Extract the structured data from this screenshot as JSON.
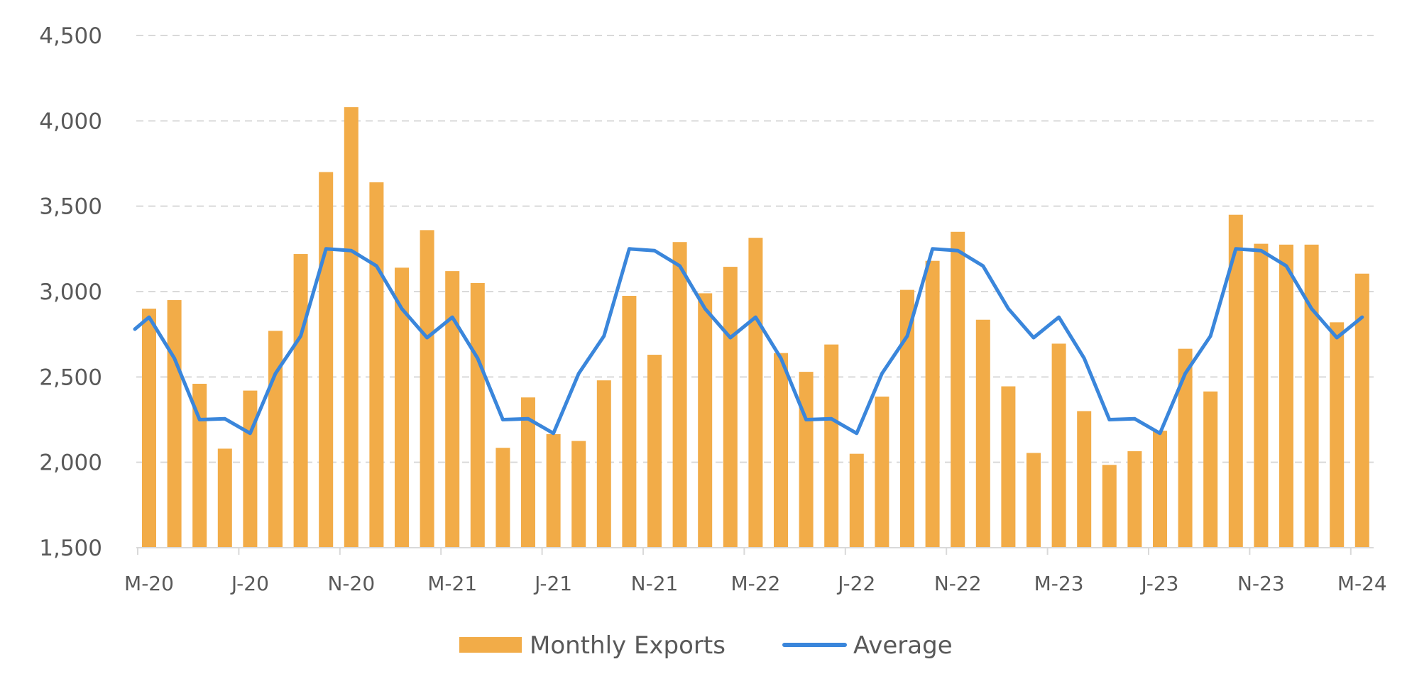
{
  "chart_data": {
    "type": "bar",
    "ylim": [
      1500,
      4500
    ],
    "y_ticks": [
      1500,
      2000,
      2500,
      3000,
      3500,
      4000,
      4500
    ],
    "y_tick_labels": [
      "1,500",
      "2,000",
      "2,500",
      "3,000",
      "3,500",
      "4,000",
      "4,500"
    ],
    "grid": "horizontal-dashed",
    "legend_position": "bottom-center",
    "x_tick_labels": [
      "M-20",
      "J-20",
      "N-20",
      "M-21",
      "J-21",
      "N-21",
      "M-22",
      "J-22",
      "N-22",
      "M-23",
      "J-23",
      "N-23",
      "M-24"
    ],
    "x_tick_every": 4,
    "categories": [
      "2020-03",
      "2020-04",
      "2020-05",
      "2020-06",
      "2020-07",
      "2020-08",
      "2020-09",
      "2020-10",
      "2020-11",
      "2020-12",
      "2021-01",
      "2021-02",
      "2021-03",
      "2021-04",
      "2021-05",
      "2021-06",
      "2021-07",
      "2021-08",
      "2021-09",
      "2021-10",
      "2021-11",
      "2021-12",
      "2022-01",
      "2022-02",
      "2022-03",
      "2022-04",
      "2022-05",
      "2022-06",
      "2022-07",
      "2022-08",
      "2022-09",
      "2022-10",
      "2022-11",
      "2022-12",
      "2023-01",
      "2023-02",
      "2023-03",
      "2023-04",
      "2023-05",
      "2023-06",
      "2023-07",
      "2023-08",
      "2023-09",
      "2023-10",
      "2023-11",
      "2023-12",
      "2024-01",
      "2024-02",
      "2024-03"
    ],
    "series": [
      {
        "name": "Monthly Exports",
        "type": "bar",
        "color": "#F2AC48",
        "values": [
          2900,
          2950,
          2460,
          2080,
          2420,
          2770,
          3220,
          3700,
          4080,
          3640,
          3140,
          3360,
          3120,
          3050,
          2085,
          2380,
          2165,
          2125,
          2480,
          2975,
          2630,
          3290,
          2990,
          3145,
          3315,
          2640,
          2530,
          2690,
          2050,
          2385,
          3010,
          3180,
          3350,
          2835,
          2445,
          2055,
          2695,
          2300,
          1985,
          2065,
          2185,
          2665,
          2415,
          3450,
          3280,
          3275,
          3275,
          2820,
          3105
        ]
      },
      {
        "name": "Average",
        "type": "line",
        "color": "#3A86DB",
        "values": [
          2850,
          2610,
          2250,
          2255,
          2170,
          2520,
          2740,
          3250,
          3240,
          3150,
          2900,
          2730,
          2850,
          2610,
          2250,
          2255,
          2170,
          2520,
          2740,
          3250,
          3240,
          3150,
          2900,
          2730,
          2850,
          2610,
          2250,
          2255,
          2170,
          2520,
          2740,
          3250,
          3240,
          3150,
          2900,
          2730,
          2850,
          2610,
          2250,
          2255,
          2170,
          2520,
          2740,
          3250,
          3240,
          3150,
          2900,
          2730,
          2850
        ],
        "extends_from_left_value": 2780
      }
    ]
  }
}
